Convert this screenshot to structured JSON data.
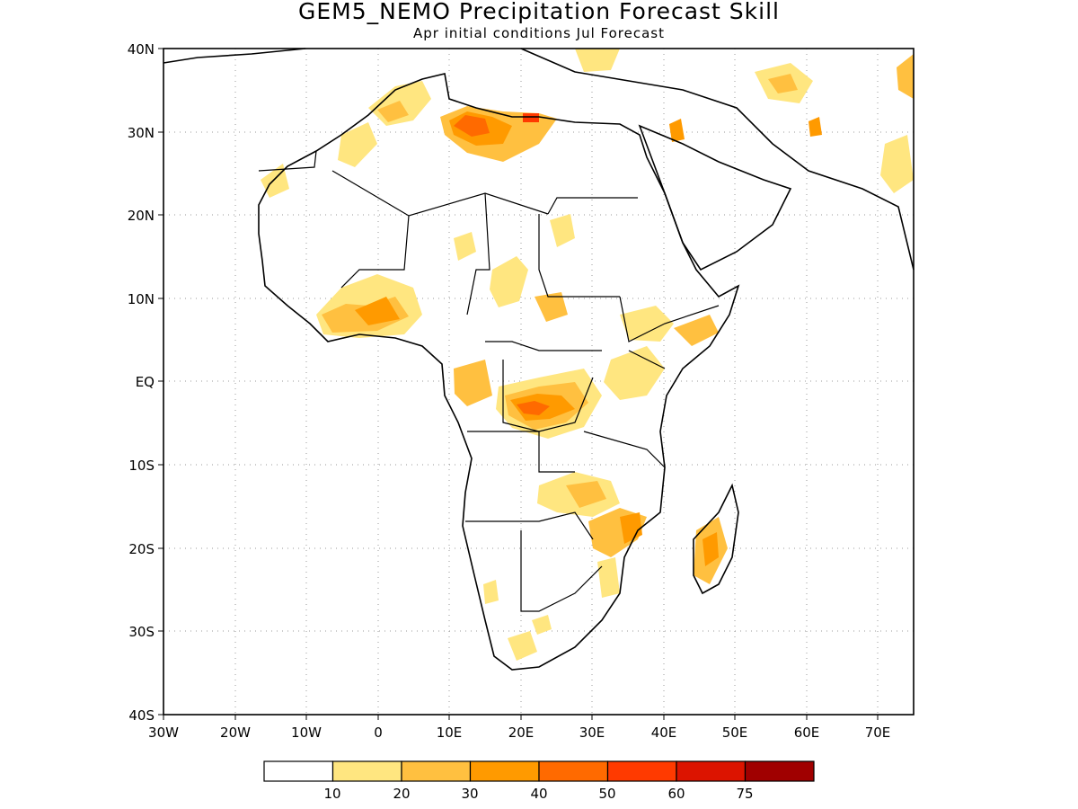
{
  "title": "GEM5_NEMO Precipitation Forecast Skill",
  "subtitle": "Apr initial conditions  Jul Forecast",
  "map": {
    "lon_range": [
      -30,
      75
    ],
    "lat_range": [
      -40,
      40
    ],
    "lat_ticks": [
      "40N",
      "30N",
      "20N",
      "10N",
      "EQ",
      "10S",
      "20S",
      "30S",
      "40S"
    ],
    "lon_ticks": [
      "30W",
      "20W",
      "10W",
      "0",
      "10E",
      "20E",
      "30E",
      "40E",
      "50E",
      "60E",
      "70E"
    ],
    "gridlines": "dotted"
  },
  "colorbar": {
    "labels": [
      "10",
      "20",
      "30",
      "40",
      "50",
      "60",
      "75"
    ],
    "colors": [
      "#ffffff",
      "#ffe680",
      "#ffc040",
      "#ff9a00",
      "#ff6a00",
      "#ff3a00",
      "#dc1400",
      "#a00000"
    ]
  }
}
